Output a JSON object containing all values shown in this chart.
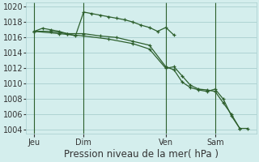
{
  "xlabel": "Pression niveau de la mer( hPa )",
  "bg_color": "#d4eeed",
  "grid_color": "#a8cece",
  "line_color": "#2d5f2d",
  "text_color": "#333333",
  "ylim": [
    1003.5,
    1020.5
  ],
  "yticks": [
    1004,
    1006,
    1008,
    1010,
    1012,
    1014,
    1016,
    1018,
    1020
  ],
  "xlim": [
    0,
    28
  ],
  "xtick_labels": [
    "Jeu",
    "Dim",
    "Ven",
    "Sam"
  ],
  "xtick_positions": [
    1,
    7,
    17,
    23
  ],
  "vlines_x": [
    1,
    7,
    17,
    23
  ],
  "series1_x": [
    1,
    2,
    3,
    4,
    5,
    6,
    7,
    8,
    9,
    10,
    11,
    12,
    13,
    14,
    15,
    16,
    17,
    18
  ],
  "series1_y": [
    1016.8,
    1017.2,
    1017.0,
    1016.8,
    1016.5,
    1016.2,
    1019.3,
    1019.1,
    1018.9,
    1018.7,
    1018.5,
    1018.3,
    1018.0,
    1017.6,
    1017.3,
    1016.8,
    1017.3,
    1016.3
  ],
  "series2_x": [
    1,
    3,
    5,
    7,
    9,
    11,
    13,
    15,
    17,
    18,
    19,
    20,
    21,
    22,
    23,
    24,
    25,
    26
  ],
  "series2_y": [
    1016.8,
    1016.8,
    1016.5,
    1016.5,
    1016.2,
    1016.0,
    1015.5,
    1015.0,
    1012.2,
    1011.8,
    1010.2,
    1009.5,
    1009.2,
    1009.0,
    1009.3,
    1008.0,
    1005.8,
    1004.2
  ],
  "series3_x": [
    1,
    4,
    7,
    10,
    13,
    15,
    17,
    18,
    19,
    20,
    21,
    22,
    23,
    24,
    25,
    26,
    27
  ],
  "series3_y": [
    1016.8,
    1016.5,
    1016.2,
    1015.8,
    1015.2,
    1014.5,
    1012.0,
    1012.2,
    1011.0,
    1009.8,
    1009.3,
    1009.2,
    1009.0,
    1007.5,
    1006.0,
    1004.2,
    1004.2
  ],
  "xlabel_fontsize": 8.5,
  "tick_fontsize": 7
}
